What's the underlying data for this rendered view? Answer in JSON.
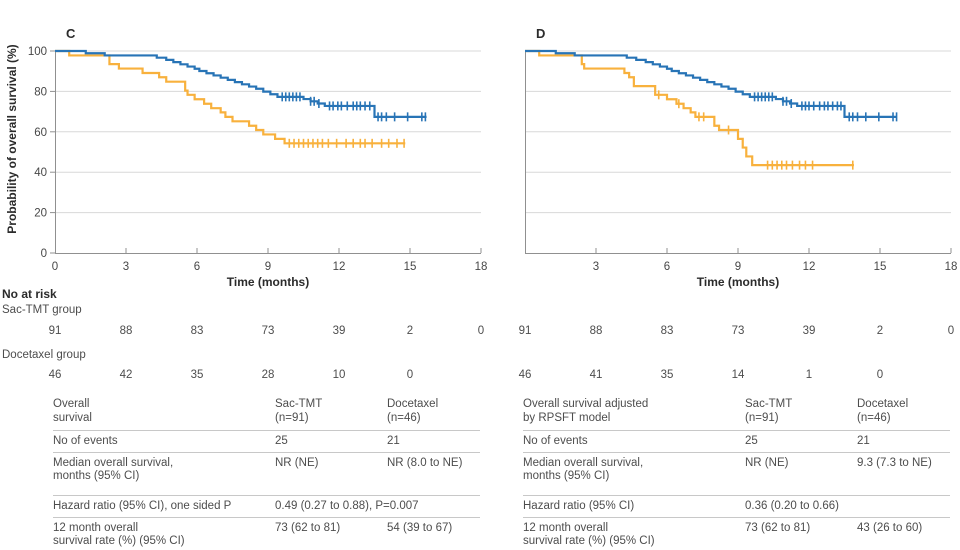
{
  "figure": {
    "y_axis_label": "Probability of overall survival (%)",
    "x_axis_label": "Time (months)"
  },
  "colors": {
    "sac_tmt": "#2874B6",
    "docetaxel": "#F8B13D",
    "grid": "#D8D8D8",
    "axis": "#909090",
    "tick_text": "#474747",
    "bold_text": "#2B2B2B",
    "table_text": "#4D4D4D",
    "divider": "#C8C8C8"
  },
  "chart_data": [
    {
      "type": "line",
      "subtype": "kaplan_meier_step",
      "panel_label": "C",
      "xlabel": "Time (months)",
      "ylabel": "Probability of overall survival (%)",
      "xlim": [
        0,
        18
      ],
      "ylim": [
        0,
        100
      ],
      "x_ticks": [
        0,
        3,
        6,
        9,
        12,
        15,
        18
      ],
      "x_tick_labels": [
        "0",
        "3",
        "6",
        "9",
        "12",
        "15",
        "18"
      ],
      "y_ticks": [
        0,
        20,
        40,
        60,
        80,
        100
      ],
      "y_tick_labels": [
        "0",
        "20",
        "40",
        "60",
        "80",
        "100"
      ],
      "show_y_tick_labels": true,
      "grid": "horizontal",
      "legend": "none",
      "series": [
        {
          "name": "Docetaxel group",
          "color_key": "docetaxel",
          "steps": [
            [
              0,
              100
            ],
            [
              0.6,
              97.8
            ],
            [
              2.3,
              93.5
            ],
            [
              2.7,
              91.3
            ],
            [
              3.7,
              89.1
            ],
            [
              4.4,
              87.0
            ],
            [
              4.7,
              84.8
            ],
            [
              5.5,
              80.4
            ],
            [
              5.6,
              78.3
            ],
            [
              5.9,
              76.1
            ],
            [
              6.3,
              73.9
            ],
            [
              6.6,
              71.7
            ],
            [
              7.0,
              69.6
            ],
            [
              7.2,
              67.4
            ],
            [
              7.5,
              65.2
            ],
            [
              8.2,
              63.0
            ],
            [
              8.5,
              60.9
            ],
            [
              8.8,
              58.7
            ],
            [
              9.3,
              56.5
            ],
            [
              9.7,
              54.3
            ],
            [
              14.8,
              54.3
            ]
          ],
          "censors": [
            9.9,
            10.1,
            10.3,
            10.5,
            10.7,
            10.9,
            11.1,
            11.3,
            11.55,
            11.9,
            12.3,
            12.6,
            12.9,
            13.1,
            13.4,
            13.8,
            14.1,
            14.45,
            14.75
          ]
        },
        {
          "name": "Sac-TMT group",
          "color_key": "sac_tmt",
          "steps": [
            [
              0,
              100
            ],
            [
              1.3,
              98.9
            ],
            [
              2.1,
              97.8
            ],
            [
              4.3,
              96.7
            ],
            [
              4.7,
              95.6
            ],
            [
              5.0,
              94.5
            ],
            [
              5.3,
              93.4
            ],
            [
              5.6,
              92.3
            ],
            [
              5.9,
              91.2
            ],
            [
              6.1,
              90.1
            ],
            [
              6.4,
              89.0
            ],
            [
              6.7,
              87.9
            ],
            [
              7.0,
              86.8
            ],
            [
              7.3,
              85.7
            ],
            [
              7.6,
              84.6
            ],
            [
              7.9,
              83.5
            ],
            [
              8.2,
              82.4
            ],
            [
              8.5,
              81.3
            ],
            [
              8.8,
              79.9
            ],
            [
              9.1,
              78.6
            ],
            [
              9.4,
              77.3
            ],
            [
              10.5,
              76.2
            ],
            [
              10.8,
              75.1
            ],
            [
              11.1,
              74.0
            ],
            [
              11.4,
              72.8
            ],
            [
              13.5,
              67.4
            ],
            [
              15.7,
              67.4
            ]
          ],
          "censors": [
            9.6,
            9.75,
            9.9,
            10.05,
            10.2,
            10.35,
            10.8,
            10.95,
            11.15,
            11.6,
            11.75,
            11.95,
            12.1,
            12.35,
            12.6,
            12.75,
            12.9,
            13.1,
            13.3,
            13.65,
            13.8,
            14.0,
            14.35,
            14.9,
            15.5,
            15.65
          ]
        }
      ]
    },
    {
      "type": "line",
      "subtype": "kaplan_meier_step",
      "panel_label": "D",
      "xlabel": "Time (months)",
      "ylabel": "",
      "xlim": [
        0,
        18
      ],
      "ylim": [
        0,
        100
      ],
      "x_ticks": [
        0,
        3,
        6,
        9,
        12,
        15,
        18
      ],
      "x_tick_labels": [
        "",
        "3",
        "6",
        "9",
        "12",
        "15",
        "18"
      ],
      "y_ticks": [
        0,
        20,
        40,
        60,
        80,
        100
      ],
      "y_tick_labels": [],
      "show_y_tick_labels": false,
      "grid": "horizontal",
      "legend": "none",
      "series": [
        {
          "name": "Docetaxel group",
          "color_key": "docetaxel",
          "steps": [
            [
              0,
              100
            ],
            [
              0.6,
              97.8
            ],
            [
              2.4,
              93.5
            ],
            [
              2.5,
              91.3
            ],
            [
              4.2,
              89.1
            ],
            [
              4.4,
              87.0
            ],
            [
              4.6,
              82.6
            ],
            [
              5.5,
              78.3
            ],
            [
              6.0,
              76.1
            ],
            [
              6.4,
              73.9
            ],
            [
              6.7,
              71.7
            ],
            [
              7.0,
              69.6
            ],
            [
              7.2,
              67.4
            ],
            [
              8.0,
              63.0
            ],
            [
              8.2,
              60.9
            ],
            [
              9.0,
              56.5
            ],
            [
              9.2,
              52.2
            ],
            [
              9.35,
              47.8
            ],
            [
              9.6,
              43.5
            ],
            [
              13.9,
              43.5
            ]
          ],
          "censors": [
            5.65,
            6.5,
            7.35,
            7.55,
            8.6,
            10.25,
            10.45,
            10.65,
            10.85,
            11.05,
            11.3,
            11.6,
            11.85,
            12.15,
            13.85
          ]
        },
        {
          "name": "Sac-TMT group",
          "color_key": "sac_tmt",
          "steps": [
            [
              0,
              100
            ],
            [
              1.3,
              98.9
            ],
            [
              2.1,
              97.8
            ],
            [
              4.3,
              96.7
            ],
            [
              4.7,
              95.6
            ],
            [
              5.1,
              94.5
            ],
            [
              5.4,
              93.4
            ],
            [
              5.7,
              92.3
            ],
            [
              6.0,
              91.2
            ],
            [
              6.2,
              90.1
            ],
            [
              6.5,
              89.0
            ],
            [
              6.8,
              87.9
            ],
            [
              7.1,
              86.8
            ],
            [
              7.4,
              85.7
            ],
            [
              7.7,
              84.6
            ],
            [
              8.0,
              83.5
            ],
            [
              8.3,
              82.4
            ],
            [
              8.6,
              81.3
            ],
            [
              8.9,
              79.9
            ],
            [
              9.2,
              78.6
            ],
            [
              9.5,
              77.3
            ],
            [
              10.6,
              76.2
            ],
            [
              10.9,
              75.1
            ],
            [
              11.2,
              74.0
            ],
            [
              11.5,
              72.8
            ],
            [
              13.5,
              67.4
            ],
            [
              15.7,
              67.4
            ]
          ],
          "censors": [
            9.7,
            9.85,
            10.0,
            10.15,
            10.3,
            10.45,
            10.9,
            11.05,
            11.25,
            11.7,
            11.85,
            12.0,
            12.2,
            12.45,
            12.65,
            12.8,
            13.0,
            13.2,
            13.35,
            13.7,
            13.85,
            14.05,
            14.4,
            14.95,
            15.55,
            15.7
          ]
        }
      ]
    }
  ],
  "risk": {
    "title": "No at risk",
    "time_points": [
      0,
      3,
      6,
      9,
      12,
      15,
      18
    ],
    "groups": [
      {
        "label": "Sac-TMT group",
        "panel_c": [
          91,
          88,
          83,
          73,
          39,
          2,
          0
        ],
        "panel_d": [
          91,
          88,
          83,
          73,
          39,
          2,
          0
        ]
      },
      {
        "label": "Docetaxel group",
        "panel_c": [
          46,
          42,
          35,
          28,
          10,
          0
        ],
        "panel_d": [
          46,
          41,
          35,
          14,
          1,
          0
        ]
      }
    ]
  },
  "stats_tables": [
    {
      "header": {
        "label": "Overall\nsurvival",
        "col1": "Sac-TMT\n(n=91)",
        "col2": "Docetaxel\n(n=46)"
      },
      "events": {
        "label": "No of events",
        "col1": "25",
        "col2": "21"
      },
      "median": {
        "label": "Median overall survival,\nmonths (95% CI)",
        "col1": "NR (NE)",
        "col2": "NR (8.0 to NE)"
      },
      "hazard": {
        "label": "Hazard ratio (95% CI), one sided P",
        "value": "0.49 (0.27 to 0.88), P=0.007"
      },
      "rate12": {
        "label": "12 month overall\nsurvival rate (%) (95% CI)",
        "col1": "73 (62 to 81)",
        "col2": "54 (39 to 67)"
      }
    },
    {
      "header": {
        "label": "Overall survival adjusted\nby RPSFT model",
        "col1": "Sac-TMT\n(n=91)",
        "col2": "Docetaxel\n(n=46)"
      },
      "events": {
        "label": "No of events",
        "col1": "25",
        "col2": "21"
      },
      "median": {
        "label": "Median overall survival,\nmonths (95% CI)",
        "col1": "NR (NE)",
        "col2": "9.3 (7.3 to NE)"
      },
      "hazard": {
        "label": "Hazard ratio (95% CI)",
        "value": "0.36 (0.20 to 0.66)"
      },
      "rate12": {
        "label": "12 month overall\nsurvival rate (%) (95% CI)",
        "col1": "73 (62 to 81)",
        "col2": "43 (26 to 60)"
      }
    }
  ]
}
